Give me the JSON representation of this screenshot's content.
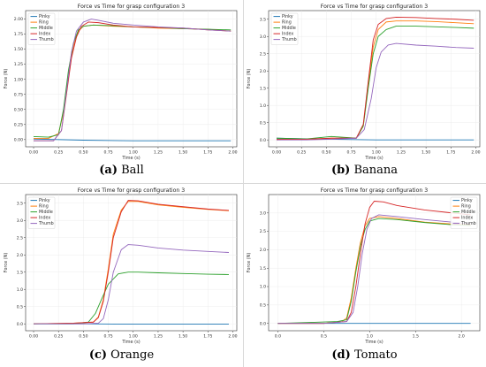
{
  "colors": {
    "Pinky": "#1f77b4",
    "Ring": "#ff7f0e",
    "Middle": "#2ca02c",
    "Index": "#d62728",
    "Thumb": "#9467bd"
  },
  "legend_entries": [
    "Pinky",
    "Ring",
    "Middle",
    "Index",
    "Thumb"
  ],
  "chart_data": [
    {
      "type": "line",
      "title": "Force vs Time for grasp configuration 3",
      "xlabel": "Time (s)",
      "ylabel": "Force (N)",
      "caption_letter": "(a)",
      "caption_name": "Ball",
      "xlim": [
        -0.08,
        2.04
      ],
      "ylim": [
        -0.12,
        2.14
      ],
      "xticks": [
        "0.00",
        "0.25",
        "0.50",
        "0.75",
        "1.00",
        "1.25",
        "1.50",
        "1.75",
        "2.00"
      ],
      "yticks": [
        "0.00",
        "0.25",
        "0.50",
        "0.75",
        "1.00",
        "1.25",
        "1.50",
        "1.75",
        "2.00"
      ],
      "legend_position": "top-left",
      "series": [
        {
          "name": "Pinky",
          "x": [
            0,
            0.5,
            1.0,
            1.5,
            1.98
          ],
          "y": [
            0.01,
            -0.01,
            -0.02,
            -0.02,
            -0.02
          ]
        },
        {
          "name": "Ring",
          "x": [
            0,
            0.15,
            0.25,
            0.3,
            0.35,
            0.4,
            0.45,
            0.5,
            0.6,
            0.8,
            1.0,
            1.25,
            1.5,
            1.75,
            1.98
          ],
          "y": [
            0.02,
            0.02,
            0.1,
            0.45,
            1.1,
            1.55,
            1.8,
            1.88,
            1.9,
            1.88,
            1.87,
            1.85,
            1.84,
            1.83,
            1.8
          ]
        },
        {
          "name": "Middle",
          "x": [
            0,
            0.15,
            0.25,
            0.3,
            0.35,
            0.4,
            0.45,
            0.5,
            0.6,
            0.8,
            1.0,
            1.25,
            1.5,
            1.75,
            1.98
          ],
          "y": [
            0.05,
            0.04,
            0.08,
            0.5,
            1.15,
            1.6,
            1.82,
            1.88,
            1.9,
            1.89,
            1.87,
            1.86,
            1.84,
            1.83,
            1.82
          ]
        },
        {
          "name": "Index",
          "x": [
            0,
            0.2,
            0.28,
            0.33,
            0.38,
            0.43,
            0.48,
            0.55,
            0.65,
            0.8,
            1.0,
            1.25,
            1.5,
            1.75,
            1.98
          ],
          "y": [
            -0.02,
            -0.02,
            0.15,
            0.75,
            1.35,
            1.7,
            1.88,
            1.95,
            1.94,
            1.9,
            1.87,
            1.86,
            1.85,
            1.82,
            1.8
          ]
        },
        {
          "name": "Thumb",
          "x": [
            0,
            0.2,
            0.28,
            0.33,
            0.38,
            0.43,
            0.5,
            0.58,
            0.65,
            0.8,
            1.0,
            1.25,
            1.5,
            1.75,
            1.98
          ],
          "y": [
            -0.02,
            -0.02,
            0.15,
            0.8,
            1.45,
            1.8,
            1.95,
            2.0,
            1.98,
            1.93,
            1.9,
            1.87,
            1.85,
            1.82,
            1.8
          ]
        }
      ]
    },
    {
      "type": "line",
      "title": "Force vs Time for grasp configuration 3",
      "xlabel": "Time (s)",
      "ylabel": "Force (N)",
      "caption_letter": "(b)",
      "caption_name": "Banana",
      "xlim": [
        -0.08,
        2.04
      ],
      "ylim": [
        -0.2,
        3.75
      ],
      "xticks": [
        "0.00",
        "0.25",
        "0.50",
        "0.75",
        "1.00",
        "1.25",
        "1.50",
        "1.75",
        "2.00"
      ],
      "yticks": [
        "0.0",
        "0.5",
        "1.0",
        "1.5",
        "2.0",
        "2.5",
        "3.0",
        "3.5"
      ],
      "legend_position": "top-left",
      "series": [
        {
          "name": "Pinky",
          "x": [
            0,
            0.5,
            1.0,
            1.5,
            1.98
          ],
          "y": [
            0.05,
            0.02,
            0.0,
            0.0,
            0.0
          ]
        },
        {
          "name": "Ring",
          "x": [
            0,
            0.3,
            0.55,
            0.8,
            0.87,
            0.92,
            0.97,
            1.02,
            1.1,
            1.2,
            1.4,
            1.6,
            1.8,
            1.98
          ],
          "y": [
            0.0,
            0.02,
            0.05,
            0.05,
            0.4,
            1.6,
            2.7,
            3.2,
            3.42,
            3.45,
            3.45,
            3.43,
            3.4,
            3.37
          ]
        },
        {
          "name": "Middle",
          "x": [
            0,
            0.3,
            0.55,
            0.8,
            0.87,
            0.92,
            0.97,
            1.02,
            1.1,
            1.2,
            1.4,
            1.6,
            1.8,
            1.98
          ],
          "y": [
            0.05,
            0.03,
            0.1,
            0.05,
            0.4,
            1.5,
            2.5,
            3.0,
            3.2,
            3.3,
            3.3,
            3.28,
            3.26,
            3.24
          ]
        },
        {
          "name": "Index",
          "x": [
            0,
            0.3,
            0.55,
            0.8,
            0.87,
            0.92,
            0.97,
            1.02,
            1.1,
            1.2,
            1.4,
            1.6,
            1.8,
            1.98
          ],
          "y": [
            0.02,
            0.02,
            0.05,
            0.05,
            0.45,
            1.7,
            2.9,
            3.35,
            3.52,
            3.56,
            3.55,
            3.52,
            3.5,
            3.47
          ]
        },
        {
          "name": "Thumb",
          "x": [
            0,
            0.3,
            0.55,
            0.8,
            0.88,
            0.95,
            1.0,
            1.05,
            1.12,
            1.2,
            1.4,
            1.6,
            1.8,
            1.98
          ],
          "y": [
            0.0,
            0.0,
            0.02,
            0.05,
            0.3,
            1.2,
            2.1,
            2.55,
            2.75,
            2.8,
            2.75,
            2.72,
            2.68,
            2.66
          ]
        }
      ]
    },
    {
      "type": "line",
      "title": "Force vs Time for grasp configuration 3",
      "xlabel": "Time (s)",
      "ylabel": "Force (N)",
      "caption_letter": "(c)",
      "caption_name": "Orange",
      "xlim": [
        -0.08,
        2.04
      ],
      "ylim": [
        -0.2,
        3.75
      ],
      "xticks": [
        "0.00",
        "0.25",
        "0.50",
        "0.75",
        "1.00",
        "1.25",
        "1.50",
        "1.75",
        "2.00"
      ],
      "yticks": [
        "0.0",
        "0.5",
        "1.0",
        "1.5",
        "2.0",
        "2.5",
        "3.0",
        "3.5"
      ],
      "legend_position": "top-left",
      "series": [
        {
          "name": "Pinky",
          "x": [
            0,
            0.5,
            1.0,
            1.5,
            1.96
          ],
          "y": [
            0.0,
            0.0,
            -0.01,
            -0.01,
            -0.01
          ]
        },
        {
          "name": "Ring",
          "x": [
            0,
            0.4,
            0.6,
            0.65,
            0.7,
            0.75,
            0.8,
            0.88,
            0.95,
            1.05,
            1.25,
            1.5,
            1.75,
            1.96
          ],
          "y": [
            0.0,
            0.02,
            0.05,
            0.2,
            0.7,
            1.6,
            2.6,
            3.3,
            3.55,
            3.55,
            3.45,
            3.38,
            3.32,
            3.28
          ]
        },
        {
          "name": "Middle",
          "x": [
            0,
            0.4,
            0.55,
            0.62,
            0.68,
            0.75,
            0.85,
            0.95,
            1.05,
            1.25,
            1.5,
            1.75,
            1.96
          ],
          "y": [
            0.0,
            0.0,
            0.05,
            0.3,
            0.7,
            1.15,
            1.45,
            1.5,
            1.5,
            1.48,
            1.46,
            1.44,
            1.43
          ]
        },
        {
          "name": "Index",
          "x": [
            0,
            0.4,
            0.6,
            0.65,
            0.7,
            0.75,
            0.8,
            0.88,
            0.95,
            1.05,
            1.25,
            1.5,
            1.75,
            1.96
          ],
          "y": [
            0.0,
            0.02,
            0.05,
            0.18,
            0.65,
            1.5,
            2.5,
            3.25,
            3.58,
            3.57,
            3.47,
            3.4,
            3.33,
            3.29
          ]
        },
        {
          "name": "Thumb",
          "x": [
            0,
            0.5,
            0.65,
            0.7,
            0.75,
            0.8,
            0.88,
            0.95,
            1.05,
            1.25,
            1.5,
            1.75,
            1.96
          ],
          "y": [
            0.0,
            0.0,
            0.02,
            0.15,
            0.7,
            1.5,
            2.15,
            2.3,
            2.28,
            2.2,
            2.14,
            2.1,
            2.07
          ]
        }
      ]
    },
    {
      "type": "line",
      "title": "Force vs Time for grasp configuration 3",
      "xlabel": "Time (s)",
      "ylabel": "Force (N)",
      "caption_letter": "(d)",
      "caption_name": "Tomato",
      "xlim": [
        -0.1,
        2.2
      ],
      "ylim": [
        -0.2,
        3.5
      ],
      "xticks": [
        "0.0",
        "0.5",
        "1.0",
        "1.5",
        "2.0"
      ],
      "yticks": [
        "0.0",
        "0.5",
        "1.0",
        "1.5",
        "2.0",
        "2.5",
        "3.0"
      ],
      "legend_position": "top-right",
      "series": [
        {
          "name": "Pinky",
          "x": [
            0,
            0.5,
            1.0,
            1.5,
            2.1
          ],
          "y": [
            0.0,
            0.0,
            0.0,
            0.0,
            0.0
          ]
        },
        {
          "name": "Ring",
          "x": [
            0,
            0.5,
            0.7,
            0.75,
            0.8,
            0.85,
            0.9,
            0.95,
            1.0,
            1.1,
            1.3,
            1.6,
            1.9,
            2.1
          ],
          "y": [
            0.0,
            0.0,
            0.05,
            0.15,
            0.7,
            1.5,
            2.2,
            2.65,
            2.85,
            2.9,
            2.85,
            2.75,
            2.7,
            2.68
          ]
        },
        {
          "name": "Middle",
          "x": [
            0,
            0.4,
            0.65,
            0.75,
            0.8,
            0.85,
            0.9,
            0.95,
            1.0,
            1.1,
            1.3,
            1.6,
            1.9,
            2.1
          ],
          "y": [
            0.0,
            0.03,
            0.05,
            0.1,
            0.6,
            1.4,
            2.1,
            2.55,
            2.78,
            2.85,
            2.82,
            2.74,
            2.68,
            2.66
          ]
        },
        {
          "name": "Index",
          "x": [
            0,
            0.5,
            0.75,
            0.8,
            0.85,
            0.9,
            0.95,
            1.0,
            1.05,
            1.15,
            1.3,
            1.6,
            1.9,
            2.1
          ],
          "y": [
            0.0,
            0.0,
            0.05,
            0.3,
            1.0,
            1.9,
            2.7,
            3.15,
            3.32,
            3.3,
            3.2,
            3.08,
            3.0,
            2.95
          ]
        },
        {
          "name": "Thumb",
          "x": [
            0,
            0.5,
            0.75,
            0.82,
            0.87,
            0.92,
            0.97,
            1.02,
            1.1,
            1.3,
            1.6,
            1.9,
            2.1
          ],
          "y": [
            0.0,
            0.0,
            0.05,
            0.3,
            1.0,
            1.9,
            2.55,
            2.85,
            2.95,
            2.9,
            2.82,
            2.75,
            2.7
          ]
        }
      ]
    }
  ]
}
